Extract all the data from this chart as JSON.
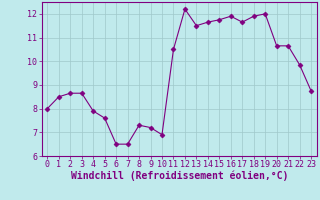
{
  "x": [
    0,
    1,
    2,
    3,
    4,
    5,
    6,
    7,
    8,
    9,
    10,
    11,
    12,
    13,
    14,
    15,
    16,
    17,
    18,
    19,
    20,
    21,
    22,
    23
  ],
  "y": [
    8.0,
    8.5,
    8.65,
    8.65,
    7.9,
    7.6,
    6.5,
    6.5,
    7.3,
    7.2,
    6.9,
    10.5,
    12.2,
    11.5,
    11.65,
    11.75,
    11.9,
    11.65,
    11.9,
    12.0,
    10.65,
    10.65,
    9.85,
    8.75
  ],
  "line_color": "#800080",
  "marker": "D",
  "marker_size": 2.5,
  "bg_color": "#c0eaec",
  "grid_color": "#a0c8ca",
  "xlabel": "Windchill (Refroidissement éolien,°C)",
  "xlim": [
    -0.5,
    23.5
  ],
  "ylim": [
    6.0,
    12.5
  ],
  "yticks": [
    6,
    7,
    8,
    9,
    10,
    11,
    12
  ],
  "xticks": [
    0,
    1,
    2,
    3,
    4,
    5,
    6,
    7,
    8,
    9,
    10,
    11,
    12,
    13,
    14,
    15,
    16,
    17,
    18,
    19,
    20,
    21,
    22,
    23
  ],
  "font_color": "#800080",
  "tick_fontsize": 6,
  "xlabel_fontsize": 7
}
